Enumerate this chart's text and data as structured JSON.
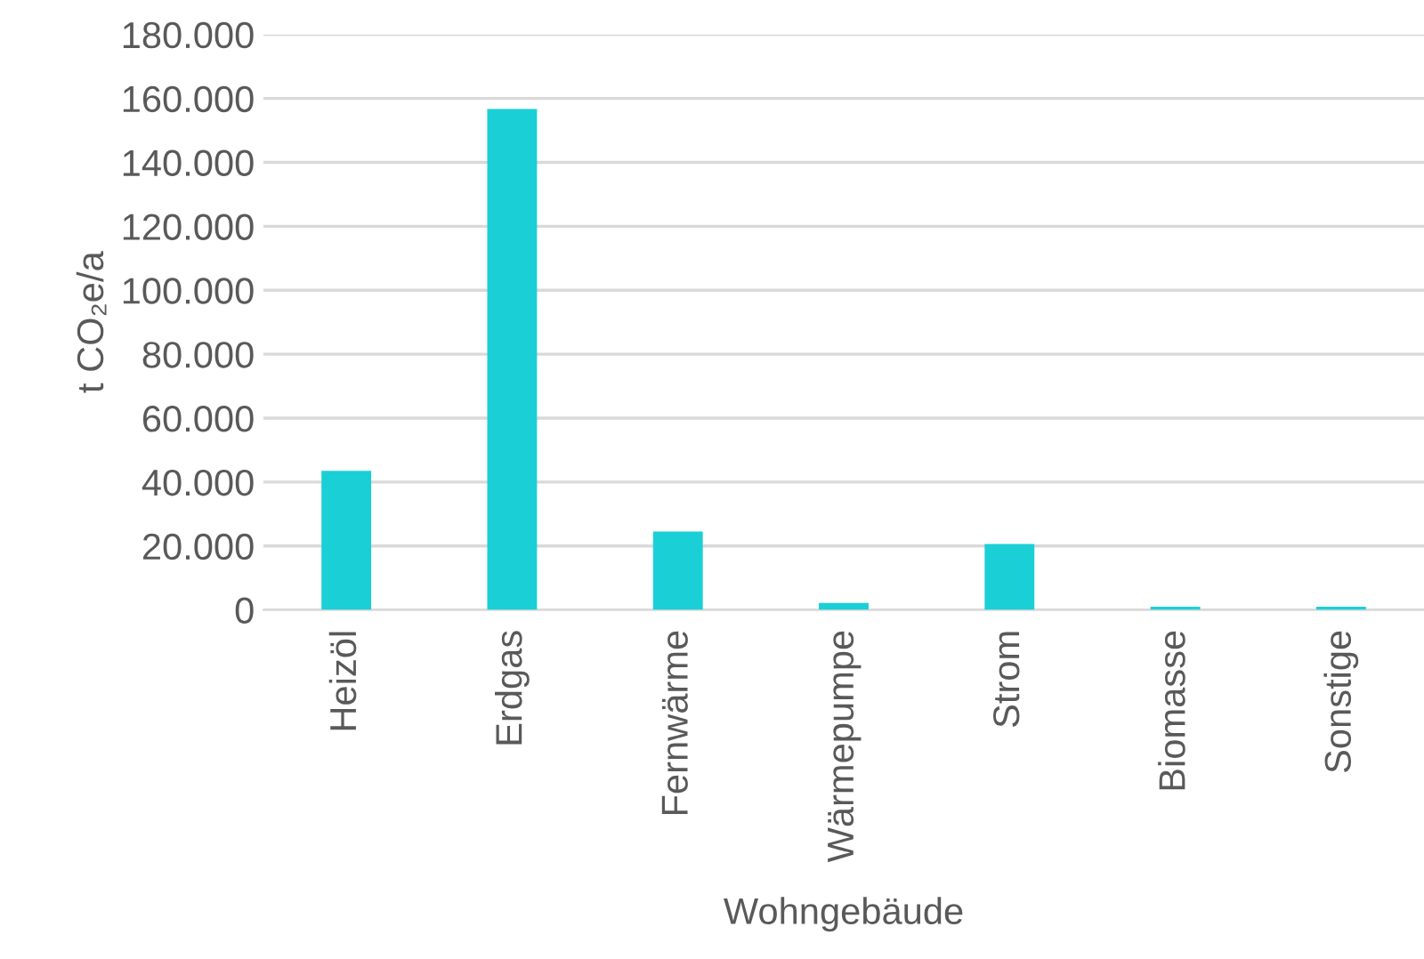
{
  "chart_data": {
    "type": "bar",
    "categories": [
      "Heizöl",
      "Erdgas",
      "Fernwärme",
      "Wärmepumpe",
      "Strom",
      "Biomasse",
      "Sonstige"
    ],
    "values": [
      43500,
      156700,
      24500,
      2200,
      20600,
      1000,
      1000
    ],
    "color": "#1bcfd6",
    "xlabel": "Wohngebäude",
    "ylabel": "t CO₂e/a",
    "ylim": [
      0,
      180000
    ],
    "yticks": [
      {
        "value": 0,
        "label": "0"
      },
      {
        "value": 20000,
        "label": "20.000"
      },
      {
        "value": 40000,
        "label": "40.000"
      },
      {
        "value": 60000,
        "label": "60.000"
      },
      {
        "value": 80000,
        "label": "80.000"
      },
      {
        "value": 100000,
        "label": "100.000"
      },
      {
        "value": 120000,
        "label": "120.000"
      },
      {
        "value": 140000,
        "label": "140.000"
      },
      {
        "value": 160000,
        "label": "160.000"
      },
      {
        "value": 180000,
        "label": "180.000"
      }
    ],
    "grid": "y",
    "legend": false
  }
}
